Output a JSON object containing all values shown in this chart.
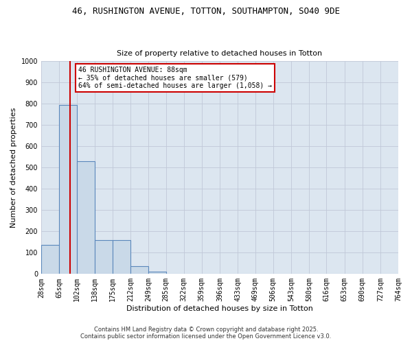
{
  "title_line1": "46, RUSHINGTON AVENUE, TOTTON, SOUTHAMPTON, SO40 9DE",
  "title_line2": "Size of property relative to detached houses in Totton",
  "xlabel": "Distribution of detached houses by size in Totton",
  "ylabel": "Number of detached properties",
  "bar_edges": [
    28,
    65,
    102,
    138,
    175,
    212,
    249,
    285,
    322,
    359,
    396,
    433,
    469,
    506,
    543,
    580,
    616,
    653,
    690,
    727,
    764
  ],
  "bar_heights": [
    135,
    795,
    530,
    160,
    160,
    35,
    10,
    0,
    0,
    0,
    0,
    0,
    0,
    0,
    0,
    0,
    0,
    0,
    0,
    0
  ],
  "bar_color": "#c9d9e8",
  "bar_edge_color": "#5a87bb",
  "red_line_x": 88,
  "annotation_title": "46 RUSHINGTON AVENUE: 88sqm",
  "annotation_line2": "← 35% of detached houses are smaller (579)",
  "annotation_line3": "64% of semi-detached houses are larger (1,058) →",
  "annotation_box_color": "#cc0000",
  "annotation_bg": "#ffffff",
  "grid_color": "#c0c8d8",
  "background_color": "#dce6f0",
  "ylim": [
    0,
    1000
  ],
  "yticks": [
    0,
    100,
    200,
    300,
    400,
    500,
    600,
    700,
    800,
    900,
    1000
  ],
  "footer_line1": "Contains HM Land Registry data © Crown copyright and database right 2025.",
  "footer_line2": "Contains public sector information licensed under the Open Government Licence v3.0.",
  "title_fontsize": 9,
  "subtitle_fontsize": 8,
  "ylabel_fontsize": 8,
  "xlabel_fontsize": 8,
  "tick_fontsize": 7,
  "footer_fontsize": 6,
  "ann_fontsize": 7
}
